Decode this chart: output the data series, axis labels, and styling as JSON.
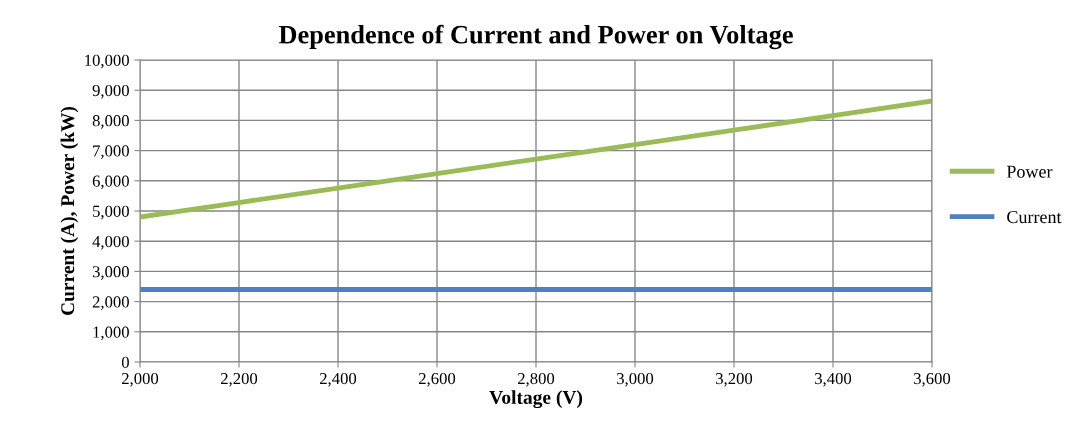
{
  "chart_data": {
    "type": "line",
    "title": "Dependence of Current and Power on Voltage",
    "xlabel": "Voltage (V)",
    "ylabel": "Current (A), Power (kW)",
    "x": [
      2000,
      2200,
      2400,
      2600,
      2800,
      3000,
      3200,
      3400,
      3600
    ],
    "series": [
      {
        "name": "Power",
        "color": "#9bbb59",
        "values": [
          4800,
          5280,
          5760,
          6240,
          6720,
          7200,
          7680,
          8160,
          8640
        ]
      },
      {
        "name": "Current",
        "color": "#4f81bd",
        "values": [
          2400,
          2400,
          2400,
          2400,
          2400,
          2400,
          2400,
          2400,
          2400
        ]
      }
    ],
    "xlim": [
      2000,
      3600
    ],
    "xticks": [
      {
        "value": 2000,
        "label": "2,000"
      },
      {
        "value": 2200,
        "label": "2,200"
      },
      {
        "value": 2400,
        "label": "2,400"
      },
      {
        "value": 2600,
        "label": "2,600"
      },
      {
        "value": 2800,
        "label": "2,800"
      },
      {
        "value": 3000,
        "label": "3,000"
      },
      {
        "value": 3200,
        "label": "3,200"
      },
      {
        "value": 3400,
        "label": "3,400"
      },
      {
        "value": 3600,
        "label": "3,600"
      }
    ],
    "ylim": [
      0,
      10000
    ],
    "yticks": [
      0,
      {
        "value": 1000,
        "label": "1,000"
      },
      {
        "value": 2000,
        "label": "2,000"
      },
      {
        "value": 3000,
        "label": "3,000"
      },
      {
        "value": 4000,
        "label": "4,000"
      },
      {
        "value": 5000,
        "label": "5,000"
      },
      {
        "value": 6000,
        "label": "6,000"
      },
      {
        "value": 7000,
        "label": "7,000"
      },
      {
        "value": 8000,
        "label": "8,000"
      },
      {
        "value": 9000,
        "label": "9,000"
      },
      {
        "value": 10000,
        "label": "10,000"
      }
    ],
    "grid": true,
    "legend": "right",
    "marker": "none",
    "line_style": "solid"
  }
}
